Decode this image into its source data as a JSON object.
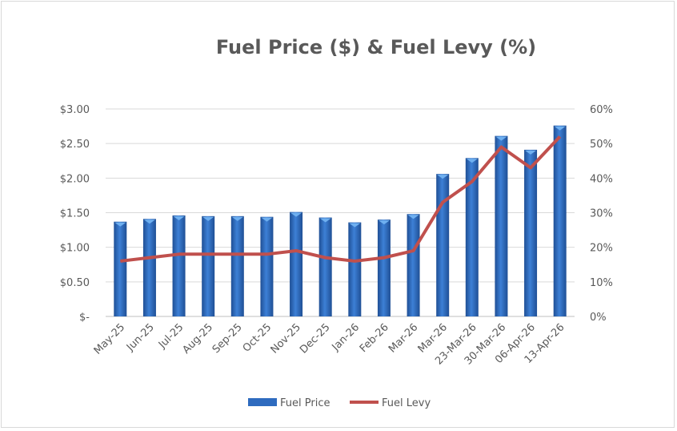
{
  "chart_data": {
    "type": "bar",
    "title": "Fuel Price ($) & Fuel Levy (%)",
    "categories": [
      "May-25",
      "Jun-25",
      "Jul-25",
      "Aug-25",
      "Sep-25",
      "Oct-25",
      "Nov-25",
      "Dec-25",
      "Jan-26",
      "Feb-26",
      "Mar-26",
      "Mar-26",
      "23-Mar-26",
      "30-Mar-26",
      "06-Apr-26",
      "13-Apr-26"
    ],
    "series": [
      {
        "name": "Fuel Price",
        "type": "bar",
        "axis": "left",
        "color": "#2e6bbf",
        "values": [
          1.37,
          1.41,
          1.46,
          1.45,
          1.45,
          1.44,
          1.51,
          1.43,
          1.36,
          1.4,
          1.48,
          2.06,
          2.29,
          2.61,
          2.41,
          2.76
        ]
      },
      {
        "name": "Fuel Levy",
        "type": "line",
        "axis": "right",
        "color": "#c0504d",
        "values": [
          16,
          17,
          18,
          18,
          18,
          18,
          19,
          17,
          16,
          17,
          19,
          33,
          39,
          49,
          43,
          52
        ]
      }
    ],
    "y_left": {
      "range": [
        0,
        3
      ],
      "ticks": [
        "$-",
        "$0.50",
        "$1.00",
        "$1.50",
        "$2.00",
        "$2.50",
        "$3.00"
      ]
    },
    "y_right": {
      "range": [
        0,
        60
      ],
      "ticks": [
        "0%",
        "10%",
        "20%",
        "30%",
        "40%",
        "50%",
        "60%"
      ]
    },
    "grid": true,
    "legend": "bottom"
  }
}
